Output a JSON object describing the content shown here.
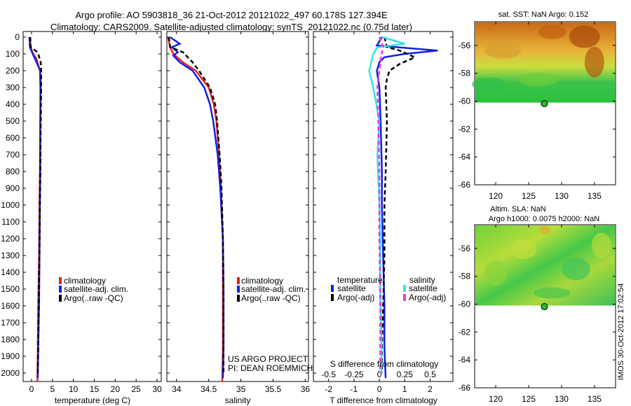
{
  "header": {
    "line1": "Argo profile: AO 5903818_36 21-Oct-2012 20121022_497 60.178S 127.394E",
    "line2": "Climatology: CARS2009. Satellite-adjusted climatology: synTS_20121022.nc (0.75d later)"
  },
  "colors": {
    "climatology": "#e8231a",
    "satellite": "#1320e0",
    "argo": "#000000",
    "sal_satellite": "#2ee6e6",
    "sal_argo": "#ee33ee"
  },
  "depth_ticks": [
    "0",
    "100",
    "200",
    "300",
    "400",
    "500",
    "600",
    "700",
    "800",
    "900",
    "1000",
    "1100",
    "1200",
    "1300",
    "1400",
    "1500",
    "1600",
    "1700",
    "1800",
    "1900",
    "2000"
  ],
  "panels": {
    "temperature": {
      "xlabel": "temperature (deg C)",
      "xticks": [
        "0",
        "5",
        "10",
        "15",
        "20",
        "25",
        "30"
      ],
      "legend": [
        "climatology",
        "satellite-adj. clim.",
        "Argo(..raw -QC)"
      ]
    },
    "salinity": {
      "xlabel": "salinity",
      "xticks": [
        "34",
        "34.5",
        "35",
        "35.5",
        "36"
      ],
      "legend": [
        "climatology",
        "satellite-adj. clim.",
        "Argo(..raw -QC)"
      ],
      "note1": "US ARGO PROJECT",
      "note2": "PI: DEAN ROEMMICH"
    },
    "difference": {
      "xlabel": "T difference from climatology",
      "xticks": [
        "-2",
        "-1",
        "0",
        "1",
        "2"
      ],
      "top_label": "S difference from climatology",
      "top_ticks": [
        "-0.5",
        "-0.25",
        "0",
        "0.25",
        "0.5"
      ],
      "legend_t_title": "temperature",
      "legend_s_title": "salinity",
      "legend_t": [
        "satellite",
        "Argo(-adj)"
      ],
      "legend_s": [
        "satellite",
        "Argo(-adj)"
      ]
    }
  },
  "maps": {
    "sst": {
      "title": "sat. SST: NaN Argo: 0.152",
      "yticks": [
        "-56",
        "-58",
        "-60",
        "-62",
        "-64",
        "-66"
      ],
      "xticks": [
        "120",
        "125",
        "130",
        "135"
      ]
    },
    "sla": {
      "title1": "Altim. SLA: NaN",
      "title2": "Argo h1000: 0.0075 h2000: NaN",
      "yticks": [
        "-56",
        "-58",
        "-60",
        "-62",
        "-64",
        "-66"
      ],
      "xticks": [
        "120",
        "125",
        "130",
        "135"
      ]
    },
    "stamp": "IMOS 30-Oct-2012 17:02:54"
  },
  "chart_data": [
    {
      "type": "line",
      "title": "",
      "xlabel": "temperature (deg C)",
      "ylabel": "",
      "xlim": [
        -2,
        31
      ],
      "ylim": [
        2050,
        0
      ],
      "series": [
        {
          "name": "climatology",
          "depth": [
            0,
            60,
            100,
            130,
            200,
            300,
            500,
            800,
            1000,
            1300,
            1600,
            1850,
            2050
          ],
          "values": [
            -0.3,
            -0.2,
            0.4,
            1.2,
            2.0,
            2.1,
            2.1,
            2.0,
            1.9,
            1.8,
            1.6,
            1.5,
            1.4
          ]
        },
        {
          "name": "satellite-adj. clim.",
          "depth": [
            0,
            60,
            100,
            200,
            300,
            500,
            800,
            1000,
            1300,
            1600,
            1850,
            2030
          ],
          "values": [
            -0.5,
            -0.4,
            0.3,
            2.1,
            2.2,
            2.1,
            2.1,
            2.0,
            1.9,
            1.8,
            1.6,
            1.5
          ]
        },
        {
          "name": "Argo(..raw -QC)",
          "depth": [
            0,
            60,
            90,
            150,
            200,
            300,
            500,
            800,
            1000,
            1300,
            1600,
            1850,
            2000
          ],
          "values": [
            -0.3,
            -0.2,
            1.5,
            2.2,
            2.3,
            2.3,
            2.2,
            2.1,
            2.0,
            1.9,
            1.7,
            1.6,
            1.5
          ]
        }
      ]
    },
    {
      "type": "line",
      "title": "",
      "xlabel": "salinity",
      "ylabel": "",
      "xlim": [
        33.85,
        36.05
      ],
      "ylim": [
        2050,
        0
      ],
      "series": [
        {
          "name": "climatology",
          "depth": [
            0,
            60,
            100,
            150,
            200,
            300,
            400,
            500,
            700,
            900,
            1200,
            1500,
            1850,
            2050
          ],
          "values": [
            33.87,
            33.9,
            33.95,
            34.1,
            34.3,
            34.5,
            34.58,
            34.62,
            34.66,
            34.69,
            34.72,
            34.72,
            34.72,
            34.71
          ]
        },
        {
          "name": "satellite-adj. clim.",
          "depth": [
            0,
            40,
            60,
            90,
            110,
            150,
            200,
            300,
            400,
            500,
            700,
            900,
            1200,
            1500,
            1850,
            2030
          ],
          "values": [
            33.9,
            34.05,
            33.93,
            34.02,
            33.95,
            34.05,
            34.25,
            34.43,
            34.52,
            34.57,
            34.64,
            34.68,
            34.72,
            34.73,
            34.73,
            34.72
          ]
        },
        {
          "name": "Argo(..raw -QC)",
          "depth": [
            0,
            60,
            90,
            150,
            200,
            300,
            400,
            500,
            700,
            900,
            1200,
            1500,
            1850,
            2000
          ],
          "values": [
            33.88,
            33.9,
            34.1,
            34.25,
            34.35,
            34.52,
            34.6,
            34.63,
            34.67,
            34.7,
            34.72,
            34.73,
            34.73,
            34.73
          ]
        }
      ]
    },
    {
      "type": "line",
      "title": "",
      "xlabel": "T difference from climatology",
      "ylabel": "",
      "xlim": [
        -2.6,
        2.9
      ],
      "ylim": [
        2050,
        0
      ],
      "series": [
        {
          "name": "temperature satellite",
          "depth": [
            0,
            50,
            80,
            100,
            120,
            150,
            200,
            300,
            500,
            800,
            1000,
            1300,
            1600,
            1850,
            2030
          ],
          "values": [
            0.1,
            -0.1,
            2.3,
            1.0,
            0.2,
            0.0,
            -0.1,
            0.0,
            0.05,
            0.1,
            0.1,
            0.15,
            0.2,
            0.2,
            0.25
          ]
        },
        {
          "name": "temperature Argo(-adj)",
          "depth": [
            0,
            60,
            80,
            120,
            160,
            200,
            250,
            300,
            500,
            800,
            1000,
            1300,
            1600,
            1850,
            2000
          ],
          "values": [
            0.2,
            0.3,
            0.8,
            1.4,
            0.8,
            0.4,
            0.3,
            0.25,
            0.3,
            0.25,
            0.2,
            0.2,
            0.15,
            0.1,
            0.1
          ]
        },
        {
          "name": "salinity satellite",
          "depth": [
            0,
            40,
            60,
            100,
            150,
            200,
            300,
            500,
            700,
            1000,
            1200,
            1500,
            1800,
            2000
          ],
          "values": [
            0.03,
            0.25,
            -0.02,
            -0.06,
            -0.08,
            -0.1,
            -0.06,
            0.0,
            -0.02,
            0.0,
            0.01,
            0.01,
            0.02,
            0.02
          ]
        },
        {
          "name": "salinity Argo(-adj)",
          "depth": [
            0,
            60,
            100,
            200,
            300,
            500,
            800,
            1200,
            1600,
            2000
          ],
          "values": [
            0.0,
            0.04,
            0.02,
            0.0,
            -0.02,
            -0.01,
            0.0,
            0.0,
            0.01,
            0.01
          ]
        }
      ]
    }
  ]
}
